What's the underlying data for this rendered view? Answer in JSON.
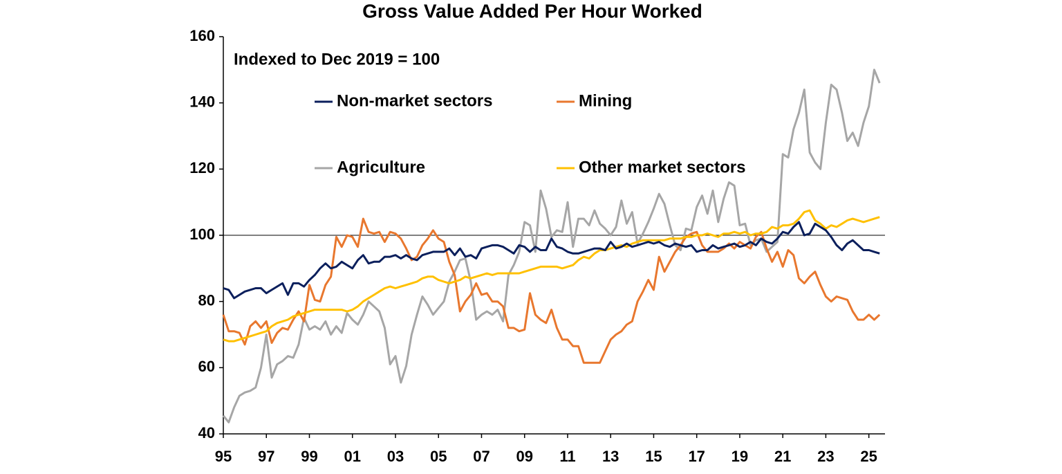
{
  "chart_data": {
    "type": "line",
    "title": "Gross Value Added Per Hour Worked",
    "annotation": "Indexed to Dec 2019 = 100",
    "reference_line": 100,
    "reference_color": "#000000",
    "legend": "upper center",
    "xlim": [
      1995,
      2025.75
    ],
    "ylim": [
      40,
      160
    ],
    "yticks": [
      40,
      60,
      80,
      100,
      120,
      140,
      160
    ],
    "xticks": [
      {
        "value": 1995,
        "label": "95"
      },
      {
        "value": 1997,
        "label": "97"
      },
      {
        "value": 1999,
        "label": "99"
      },
      {
        "value": 2001,
        "label": "01"
      },
      {
        "value": 2003,
        "label": "03"
      },
      {
        "value": 2005,
        "label": "05"
      },
      {
        "value": 2007,
        "label": "07"
      },
      {
        "value": 2009,
        "label": "09"
      },
      {
        "value": 2011,
        "label": "11"
      },
      {
        "value": 2013,
        "label": "13"
      },
      {
        "value": 2015,
        "label": "15"
      },
      {
        "value": 2017,
        "label": "17"
      },
      {
        "value": 2019,
        "label": "19"
      },
      {
        "value": 2021,
        "label": "21"
      },
      {
        "value": 2023,
        "label": "23"
      },
      {
        "value": 2025,
        "label": "25"
      }
    ],
    "x": [
      1995,
      1995.25,
      1995.5,
      1995.75,
      1996,
      1996.25,
      1996.5,
      1996.75,
      1997,
      1997.25,
      1997.5,
      1997.75,
      1998,
      1998.25,
      1998.5,
      1998.75,
      1999,
      1999.25,
      1999.5,
      1999.75,
      2000,
      2000.25,
      2000.5,
      2000.75,
      2001,
      2001.25,
      2001.5,
      2001.75,
      2002,
      2002.25,
      2002.5,
      2002.75,
      2003,
      2003.25,
      2003.5,
      2003.75,
      2004,
      2004.25,
      2004.5,
      2004.75,
      2005,
      2005.25,
      2005.5,
      2005.75,
      2006,
      2006.25,
      2006.5,
      2006.75,
      2007,
      2007.25,
      2007.5,
      2007.75,
      2008,
      2008.25,
      2008.5,
      2008.75,
      2009,
      2009.25,
      2009.5,
      2009.75,
      2010,
      2010.25,
      2010.5,
      2010.75,
      2011,
      2011.25,
      2011.5,
      2011.75,
      2012,
      2012.25,
      2012.5,
      2012.75,
      2013,
      2013.25,
      2013.5,
      2013.75,
      2014,
      2014.25,
      2014.5,
      2014.75,
      2015,
      2015.25,
      2015.5,
      2015.75,
      2016,
      2016.25,
      2016.5,
      2016.75,
      2017,
      2017.25,
      2017.5,
      2017.75,
      2018,
      2018.25,
      2018.5,
      2018.75,
      2019,
      2019.25,
      2019.5,
      2019.75,
      2020,
      2020.25,
      2020.5,
      2020.75,
      2021,
      2021.25,
      2021.5,
      2021.75,
      2022,
      2022.25,
      2022.5,
      2022.75,
      2023,
      2023.25,
      2023.5,
      2023.75,
      2024,
      2024.25,
      2024.5,
      2024.75,
      2025,
      2025.25,
      2025.5
    ],
    "series": [
      {
        "name": "Non-market sectors",
        "color": "#0b1f5c",
        "values": [
          84,
          83.5,
          81,
          82,
          83,
          83.5,
          84,
          84,
          82.5,
          83.5,
          84.5,
          85.5,
          82,
          85.5,
          85.5,
          84.5,
          86.5,
          88,
          90,
          91.5,
          90,
          90.5,
          92,
          91,
          90,
          92.5,
          94,
          91.5,
          92,
          92,
          93.5,
          93.5,
          94,
          93,
          94,
          93,
          92.5,
          94,
          94.5,
          95,
          95,
          95,
          96,
          94,
          96,
          93.5,
          94,
          93,
          96,
          96.5,
          97,
          97,
          96.5,
          95.5,
          94.5,
          97,
          96.5,
          95,
          96.5,
          95.5,
          95.5,
          99,
          96.5,
          96,
          95,
          94.5,
          94.5,
          95,
          95.5,
          96,
          96,
          95.5,
          98,
          96,
          96.5,
          97.5,
          96.5,
          97,
          97.5,
          98,
          97.5,
          98,
          97,
          96.5,
          97.5,
          97,
          96.5,
          97,
          95,
          95.5,
          95.5,
          97,
          96,
          96.5,
          97,
          97.5,
          96.5,
          97,
          98,
          97,
          99,
          98,
          97.5,
          99,
          101,
          100.5,
          102.5,
          104,
          100,
          100.5,
          103.5,
          102.5,
          101.5,
          99.5,
          97,
          95.5,
          97.5,
          98.5,
          97,
          95.5,
          95.5,
          95,
          94.5
        ]
      },
      {
        "name": "Mining",
        "color": "#e8772e",
        "values": [
          76,
          71,
          71,
          70.5,
          67,
          72.5,
          74,
          72,
          74,
          67.5,
          70.5,
          72,
          71.5,
          74.5,
          77,
          74,
          85,
          80.5,
          80,
          85,
          87.5,
          99.5,
          96.5,
          100,
          99.5,
          96.5,
          105,
          101,
          100.5,
          101,
          98,
          101,
          100.5,
          99,
          96,
          92.5,
          93.5,
          97,
          99,
          101.5,
          99,
          98,
          92,
          88,
          77,
          80,
          82,
          85.5,
          82,
          82.5,
          80,
          80,
          78.5,
          72,
          72,
          71,
          71.5,
          82.5,
          76,
          74.5,
          73.5,
          77.5,
          72,
          68.5,
          68.5,
          66.5,
          66.5,
          61.5,
          61.5,
          61.5,
          61.5,
          65,
          68.5,
          70,
          71,
          73,
          74,
          80,
          83,
          86.5,
          83.5,
          93.5,
          89,
          92,
          95,
          97,
          99.5,
          100.5,
          101,
          97,
          95,
          95,
          95,
          96,
          97.5,
          96,
          98,
          97,
          96,
          99.5,
          101,
          96,
          92,
          95,
          90.5,
          95.5,
          94,
          87,
          85.5,
          87.5,
          89,
          85,
          81.5,
          80,
          81.5,
          81,
          80.5,
          77,
          74.5,
          74.5,
          76,
          74.5,
          76
        ]
      },
      {
        "name": "Agriculture",
        "color": "#a6a6a6",
        "values": [
          45.5,
          43.5,
          48,
          51.5,
          52.5,
          53,
          54,
          60,
          70,
          57,
          61,
          62,
          63.5,
          63,
          67,
          75,
          71.5,
          72.5,
          71.5,
          74,
          70,
          72.5,
          70.5,
          76.5,
          74.5,
          73,
          76,
          80,
          78.5,
          77,
          72,
          61,
          63.5,
          55.5,
          60.5,
          70,
          76,
          81.5,
          79,
          76,
          78,
          80,
          86,
          89,
          92.5,
          93,
          86,
          74.5,
          76,
          77,
          76,
          77.5,
          74,
          88,
          91,
          95,
          104,
          103,
          95,
          113.5,
          108,
          99.5,
          101.5,
          101,
          110,
          96.5,
          105,
          105,
          103,
          107.5,
          103.5,
          102,
          100,
          102.5,
          110.5,
          103.5,
          107,
          97.5,
          100.5,
          104,
          108,
          112.5,
          109.5,
          103,
          97,
          95.5,
          102,
          101.5,
          108.5,
          112,
          106.5,
          113.5,
          104,
          111,
          116,
          115,
          103,
          103.5,
          97,
          98.5,
          99,
          95,
          96.5,
          98,
          124.5,
          123.5,
          132,
          137,
          144,
          125,
          122,
          120,
          134,
          145.5,
          144,
          137,
          128.5,
          131,
          127,
          134,
          139,
          150,
          146
        ]
      },
      {
        "name": "Other market sectors",
        "color": "#ffc000",
        "values": [
          68.5,
          68,
          68,
          68.5,
          69,
          69.5,
          70,
          70.5,
          71,
          72.5,
          73.5,
          74,
          74.5,
          75.5,
          76,
          76.5,
          77,
          77.5,
          77.5,
          77.5,
          77.5,
          77.5,
          77.5,
          77,
          77.5,
          78.5,
          80,
          81,
          82,
          83,
          84,
          84.5,
          84,
          84.5,
          85,
          85.5,
          86,
          87,
          87.5,
          87.5,
          86.5,
          86,
          85.5,
          86,
          86.5,
          87.5,
          87,
          87.5,
          88,
          88.5,
          88,
          88.5,
          88.5,
          88.5,
          88.5,
          88.5,
          89,
          89.5,
          90,
          90.5,
          90.5,
          90.5,
          90.5,
          90,
          90.5,
          91,
          92.5,
          93.5,
          93,
          94.5,
          95.5,
          95.5,
          96,
          96.5,
          97,
          96.5,
          97.5,
          98,
          98.5,
          98.5,
          98.5,
          98.5,
          98.5,
          99,
          99,
          99,
          99.5,
          99.5,
          100,
          100,
          100.5,
          100,
          99.5,
          100.5,
          100.5,
          101,
          100.5,
          101,
          100,
          100.5,
          100.5,
          101,
          102.5,
          102,
          103,
          103,
          103.5,
          105,
          107,
          107.5,
          104.5,
          103.5,
          102,
          103,
          102.5,
          103.5,
          104.5,
          105,
          104.5,
          104,
          104.5,
          105,
          105.5
        ]
      }
    ]
  }
}
